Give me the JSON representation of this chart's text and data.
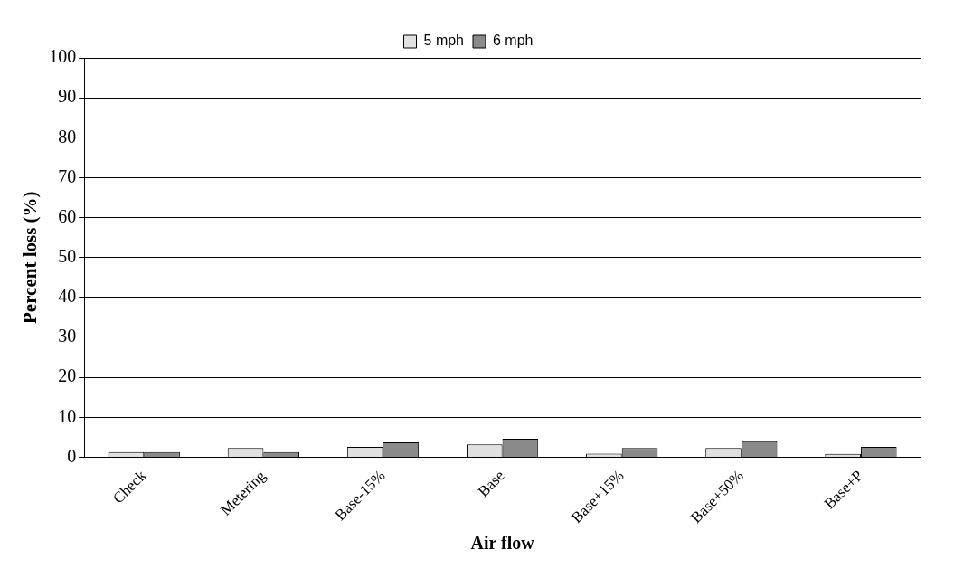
{
  "chart_data": {
    "type": "bar",
    "xlabel": "Air flow",
    "ylabel": "Percent loss (%)",
    "categories": [
      "Check",
      "Metering",
      "Base-15%",
      "Base",
      "Base+15%",
      "Base+50%",
      "Base+P"
    ],
    "series": [
      {
        "name": "5 mph",
        "color": "#e0e0e0",
        "values": [
          1.3,
          2.3,
          2.6,
          3.2,
          0.9,
          2.3,
          0.8
        ]
      },
      {
        "name": "6 mph",
        "color": "#8a8a8a",
        "values": [
          1.3,
          1.3,
          3.7,
          4.6,
          2.3,
          4.0,
          2.6
        ]
      }
    ],
    "ylim": [
      0,
      100
    ],
    "yticks": [
      0,
      10,
      20,
      30,
      40,
      50,
      60,
      70,
      80,
      90,
      100
    ],
    "grid": "y",
    "legend": "top"
  }
}
